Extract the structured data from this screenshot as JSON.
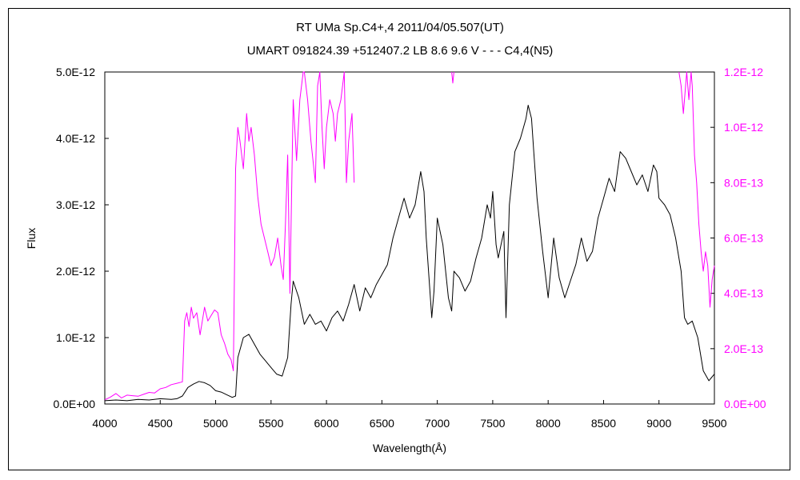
{
  "title_line1": "RT UMa    Sp.C4+,4    2011/04/05.507(UT)",
  "title_line2": "UMART 091824.39 +512407.2 LB 8.6 9.6 V - - - C4,4(N5)",
  "chart_data": {
    "type": "line",
    "xlabel": "Wavelength(Å)",
    "ylabel": "Flux",
    "xlim": [
      4000,
      9500
    ],
    "ylim_left": [
      0,
      5e-12
    ],
    "ylim_right": [
      0,
      1.2e-12
    ],
    "x_ticks": [
      "4000",
      "4500",
      "5000",
      "5500",
      "6000",
      "6500",
      "7000",
      "7500",
      "8000",
      "8500",
      "9000",
      "9500"
    ],
    "y_ticks_left": [
      "0.0E+00",
      "1.0E-12",
      "2.0E-12",
      "3.0E-12",
      "4.0E-12",
      "5.0E-12"
    ],
    "y_ticks_right": [
      "0.0E+00",
      "2.0E-13",
      "4.0E-13",
      "6.0E-13",
      "8.0E-13",
      "1.0E-12",
      "1.2E-12"
    ],
    "grid": false,
    "colors": {
      "black_series": "#000000",
      "magenta_series": "#ff00ff",
      "right_axis_labels": "#ff00ff"
    },
    "series": [
      {
        "axis": "left",
        "color": "#000000",
        "x": [
          4000,
          4100,
          4200,
          4300,
          4400,
          4500,
          4600,
          4650,
          4700,
          4750,
          4800,
          4850,
          4900,
          4950,
          5000,
          5050,
          5100,
          5150,
          5180,
          5200,
          5250,
          5300,
          5350,
          5400,
          5450,
          5500,
          5550,
          5600,
          5650,
          5680,
          5700,
          5750,
          5800,
          5850,
          5900,
          5950,
          6000,
          6050,
          6100,
          6150,
          6200,
          6250,
          6300,
          6350,
          6400,
          6450,
          6500,
          6550,
          6600,
          6650,
          6700,
          6750,
          6800,
          6850,
          6880,
          6900,
          6950,
          6970,
          7000,
          7050,
          7100,
          7130,
          7150,
          7200,
          7250,
          7300,
          7350,
          7400,
          7450,
          7480,
          7500,
          7530,
          7550,
          7600,
          7620,
          7650,
          7700,
          7750,
          7800,
          7820,
          7850,
          7870,
          7900,
          7950,
          8000,
          8050,
          8100,
          8150,
          8200,
          8250,
          8300,
          8350,
          8400,
          8450,
          8500,
          8550,
          8600,
          8650,
          8700,
          8750,
          8800,
          8850,
          8900,
          8950,
          8980,
          9000,
          9050,
          9100,
          9150,
          9200,
          9230,
          9260,
          9300,
          9350,
          9400,
          9450,
          9500
        ],
        "y": [
          5e-14,
          6e-14,
          5e-14,
          7e-14,
          6e-14,
          8e-14,
          7e-14,
          8e-14,
          1.2e-13,
          2.5e-13,
          3e-13,
          3.4e-13,
          3.2e-13,
          2.8e-13,
          2e-13,
          1.8e-13,
          1.4e-13,
          1e-13,
          1.2e-13,
          7e-13,
          1e-12,
          1.05e-12,
          9e-13,
          7.5e-13,
          6.5e-13,
          5.5e-13,
          4.5e-13,
          4.2e-13,
          7e-13,
          1.5e-12,
          1.85e-12,
          1.6e-12,
          1.2e-12,
          1.35e-12,
          1.2e-12,
          1.25e-12,
          1.1e-12,
          1.3e-12,
          1.4e-12,
          1.25e-12,
          1.5e-12,
          1.8e-12,
          1.4e-12,
          1.75e-12,
          1.6e-12,
          1.8e-12,
          1.95e-12,
          2.1e-12,
          2.5e-12,
          2.8e-12,
          3.1e-12,
          2.8e-12,
          3e-12,
          3.5e-12,
          3.2e-12,
          2.5e-12,
          1.3e-12,
          1.7e-12,
          2.8e-12,
          2.4e-12,
          1.6e-12,
          1.4e-12,
          2e-12,
          1.9e-12,
          1.7e-12,
          1.85e-12,
          2.2e-12,
          2.5e-12,
          3e-12,
          2.8e-12,
          3.2e-12,
          2.4e-12,
          2.2e-12,
          2.6e-12,
          1.3e-12,
          3e-12,
          3.8e-12,
          4e-12,
          4.3e-12,
          4.5e-12,
          4.3e-12,
          3.8e-12,
          3.1e-12,
          2.3e-12,
          1.6e-12,
          2.5e-12,
          1.9e-12,
          1.6e-12,
          1.85e-12,
          2.1e-12,
          2.5e-12,
          2.15e-12,
          2.3e-12,
          2.8e-12,
          3.1e-12,
          3.4e-12,
          3.2e-12,
          3.8e-12,
          3.7e-12,
          3.5e-12,
          3.3e-12,
          3.45e-12,
          3.2e-12,
          3.6e-12,
          3.5e-12,
          3.1e-12,
          3e-12,
          2.85e-12,
          2.5e-12,
          2e-12,
          1.3e-12,
          1.2e-12,
          1.25e-12,
          1e-12,
          5e-13,
          3.5e-13,
          4.5e-13
        ]
      },
      {
        "axis": "right",
        "color": "#ff00ff",
        "x": [
          4000,
          4050,
          4100,
          4150,
          4200,
          4250,
          4300,
          4350,
          4400,
          4450,
          4500,
          4550,
          4600,
          4650,
          4700,
          4720,
          4740,
          4760,
          4780,
          4800,
          4830,
          4860,
          4900,
          4930,
          4960,
          4990,
          5020,
          5050,
          5080,
          5110,
          5140,
          5160,
          5180,
          5200,
          5220,
          5250,
          5280,
          5300,
          5320,
          5350,
          5380,
          5410,
          5440,
          5470,
          5500,
          5530,
          5560,
          5590,
          5610,
          5630,
          5650,
          5670,
          5700,
          5730,
          5760,
          5790,
          5800,
          5830,
          5860,
          5900,
          5920,
          5940,
          5960,
          5980,
          6000,
          6030,
          6060,
          6080,
          6100,
          6130,
          6160,
          6180,
          6200,
          6230,
          6250
        ],
        "y": [
          1.5e-14,
          2.5e-14,
          3.8e-14,
          2.2e-14,
          3.2e-14,
          3e-14,
          2.8e-14,
          3.5e-14,
          4.2e-14,
          4e-14,
          5.5e-14,
          6e-14,
          7e-14,
          7.5e-14,
          8e-14,
          3e-13,
          3.3e-13,
          2.8e-13,
          3.5e-13,
          3.1e-13,
          3.3e-13,
          2.5e-13,
          3.5e-13,
          3e-13,
          3.2e-13,
          3.4e-13,
          3.3e-13,
          2.5e-13,
          2.2e-13,
          1.8e-13,
          1.6e-13,
          1.2e-13,
          8.5e-13,
          1e-12,
          9.5e-13,
          8.5e-13,
          1.05e-12,
          9.5e-13,
          1e-12,
          9e-13,
          7.5e-13,
          6.5e-13,
          6e-13,
          5.5e-13,
          5e-13,
          5.3e-13,
          6e-13,
          5e-13,
          4.5e-13,
          6.5e-13,
          9e-13,
          4e-13,
          1.1e-12,
          8.8e-13,
          1.1e-12,
          1.2e-12,
          1.2e-12,
          1.1e-12,
          9.5e-13,
          8e-13,
          1.15e-12,
          1.2e-12,
          1e-12,
          8.5e-13,
          1e-12,
          1.1e-12,
          1.05e-12,
          9.5e-13,
          1.05e-12,
          1.1e-12,
          1.2e-12,
          8e-13,
          9.5e-13,
          1.05e-12,
          8e-13
        ]
      },
      {
        "axis": "right",
        "color": "#ff00ff",
        "x": [
          7130,
          7140,
          7150
        ],
        "y": [
          1.2e-12,
          1.16e-12,
          1.2e-12
        ]
      },
      {
        "axis": "right",
        "color": "#ff00ff",
        "x": [
          9180,
          9200,
          9220,
          9250,
          9270,
          9290,
          9300,
          9320,
          9340,
          9360,
          9380,
          9400,
          9420,
          9440,
          9460,
          9480,
          9500
        ],
        "y": [
          1.2e-12,
          1.15e-12,
          1.05e-12,
          1.2e-12,
          1.1e-12,
          1.2e-12,
          1.15e-12,
          9e-13,
          8e-13,
          6.5e-13,
          5.5e-13,
          4.8e-13,
          5.5e-13,
          5e-13,
          3.5e-13,
          4.5e-13,
          5e-13
        ]
      }
    ]
  }
}
